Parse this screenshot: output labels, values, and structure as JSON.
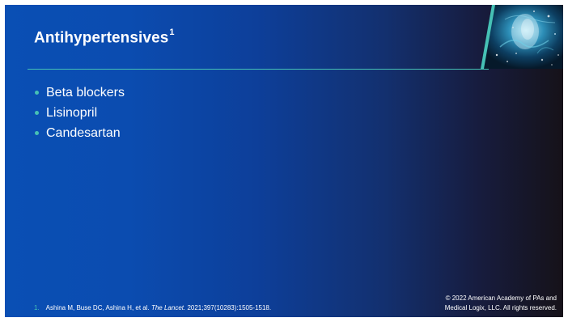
{
  "slide": {
    "title": "Antihypertensives",
    "title_superscript": "1",
    "bullets": [
      "Beta blockers",
      "Lisinopril",
      "Candesartan"
    ],
    "footnote": {
      "number": "1.",
      "authors": "Ashina M, Buse DC, Ashina H, et al.",
      "journal": "The Lancet.",
      "citation": "2021;397(10283):1505-1518."
    },
    "copyright": {
      "line1": "© 2022 American Academy of PAs and",
      "line2": "Medical Logix, LLC. All rights reserved."
    }
  },
  "colors": {
    "accent": "#46c1b5",
    "background_left": "#0a4fb4",
    "background_right": "#161219",
    "text": "#ffffff"
  }
}
